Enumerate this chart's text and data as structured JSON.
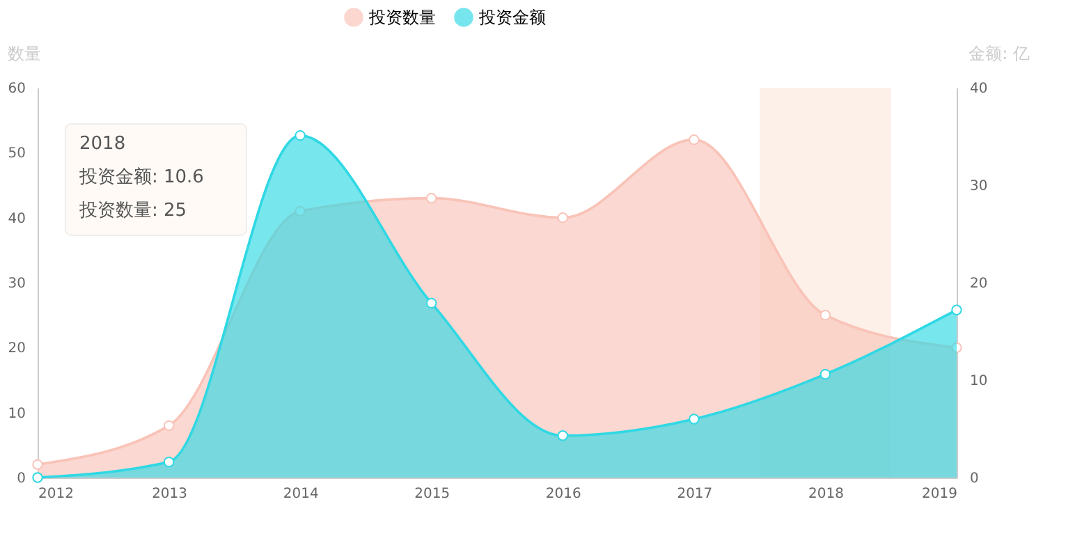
{
  "chart_data": {
    "type": "area",
    "x": [
      2012,
      2013,
      2014,
      2015,
      2016,
      2017,
      2018,
      2019
    ],
    "xlim": [
      2012,
      2019
    ],
    "xticks": [
      2012,
      2013,
      2014,
      2015,
      2016,
      2017,
      2018,
      2019
    ],
    "ylabel": "数量",
    "y2label": "金额: 亿",
    "ylim": [
      0,
      60
    ],
    "yticks": [
      0,
      10,
      20,
      30,
      40,
      50,
      60
    ],
    "y2lim": [
      0,
      40
    ],
    "y2ticks": [
      0,
      10,
      20,
      30,
      40
    ],
    "series": [
      {
        "name": "投资数量",
        "color": "#f9c3b8",
        "values": [
          2,
          8,
          41,
          43,
          40,
          52,
          25,
          20
        ]
      },
      {
        "name": "投资金额",
        "color": "#2fd8e4",
        "axis": "y2",
        "values": [
          0,
          1.6,
          35.1,
          17.9,
          4.3,
          6,
          10.6,
          17.2
        ]
      }
    ],
    "bands": [
      {
        "axis": "x",
        "from": 2017.5,
        "to": 2018.5,
        "color": "#fdeee6"
      }
    ],
    "annotations": [
      "2018",
      "投资金额: 10.6",
      "投资数量: 25"
    ],
    "marker": "circle",
    "legend": "top",
    "grid": false
  }
}
